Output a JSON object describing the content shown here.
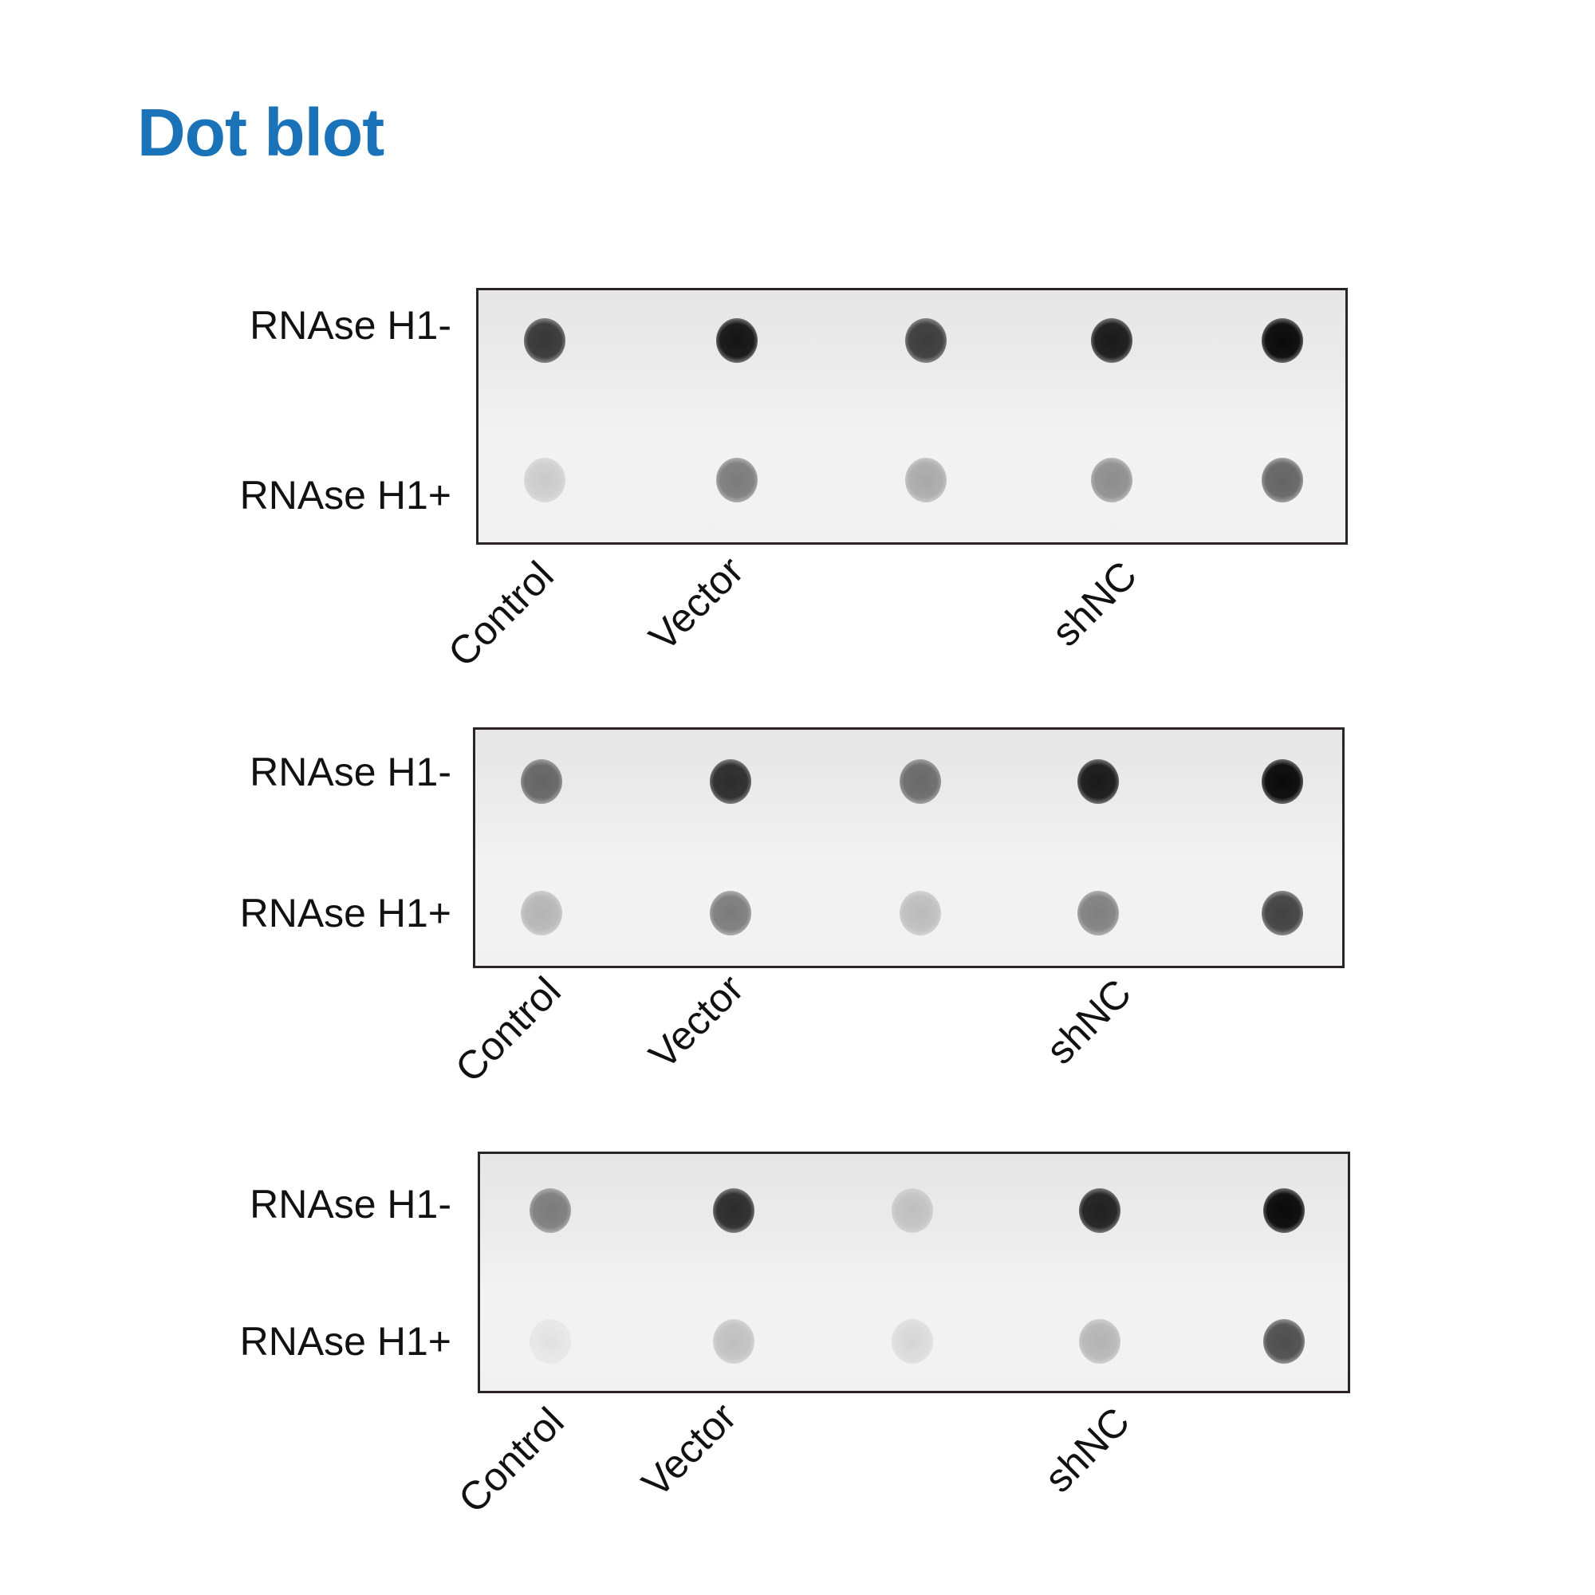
{
  "title": "Dot blot",
  "row_labels": [
    "RNAse H1-",
    "RNAse H1+"
  ],
  "lane_labels": [
    "Control",
    "Vector",
    "shNC"
  ],
  "title_color": "#1a72b8",
  "blots": [
    {
      "darkness": [
        [
          0.8,
          0.95,
          0.78,
          0.93,
          1.0
        ],
        [
          0.15,
          0.5,
          0.3,
          0.42,
          0.6
        ]
      ]
    },
    {
      "darkness": [
        [
          0.6,
          0.85,
          0.58,
          0.93,
          1.0
        ],
        [
          0.25,
          0.5,
          0.22,
          0.48,
          0.75
        ]
      ]
    },
    {
      "darkness": [
        [
          0.5,
          0.85,
          0.2,
          0.9,
          1.0
        ],
        [
          0.05,
          0.2,
          0.1,
          0.25,
          0.7
        ]
      ]
    }
  ]
}
